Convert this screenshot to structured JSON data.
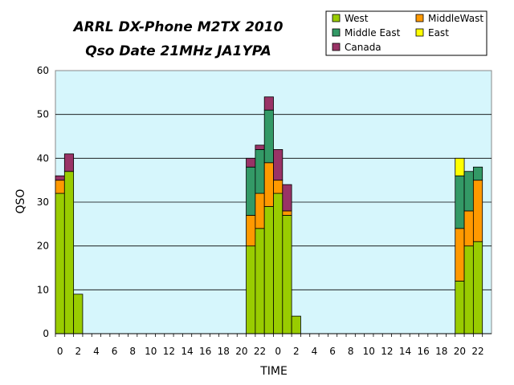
{
  "chart_data": {
    "type": "bar",
    "stacked": true,
    "title": "ARRL DX-Phone M2TX 2010",
    "subtitle": "Qso Date 21MHz JA1YPA",
    "xlabel": "TIME",
    "ylabel": "QSO",
    "ylim": [
      0,
      60
    ],
    "yticks": [
      0,
      10,
      20,
      30,
      40,
      50,
      60
    ],
    "grid": true,
    "legend_position": "top-right",
    "plot_background": "#d6f6fc",
    "categories": [
      "0",
      "1",
      "2",
      "3",
      "4",
      "5",
      "6",
      "7",
      "8",
      "9",
      "10",
      "11",
      "12",
      "13",
      "14",
      "15",
      "16",
      "17",
      "18",
      "19",
      "20",
      "21",
      "22",
      "23",
      "0",
      "1",
      "2",
      "3",
      "4",
      "5",
      "6",
      "7",
      "8",
      "9",
      "10",
      "11",
      "12",
      "13",
      "14",
      "15",
      "16",
      "17",
      "18",
      "19",
      "20",
      "21",
      "22",
      "23"
    ],
    "tick_labels": [
      "0",
      "2",
      "4",
      "6",
      "8",
      "10",
      "12",
      "14",
      "16",
      "18",
      "20",
      "22",
      "0",
      "2",
      "4",
      "6",
      "8",
      "10",
      "12",
      "14",
      "16",
      "18",
      "20",
      "22"
    ],
    "series": [
      {
        "name": "West",
        "color": "#99cc00",
        "values": [
          32,
          37,
          9,
          0,
          0,
          0,
          0,
          0,
          0,
          0,
          0,
          0,
          0,
          0,
          0,
          0,
          0,
          0,
          0,
          0,
          0,
          20,
          24,
          29,
          32,
          27,
          4,
          0,
          0,
          0,
          0,
          0,
          0,
          0,
          0,
          0,
          0,
          0,
          0,
          0,
          0,
          0,
          0,
          0,
          12,
          20,
          21,
          0
        ]
      },
      {
        "name": "MiddleWast",
        "color": "#ff9900",
        "values": [
          3,
          0,
          0,
          0,
          0,
          0,
          0,
          0,
          0,
          0,
          0,
          0,
          0,
          0,
          0,
          0,
          0,
          0,
          0,
          0,
          0,
          7,
          8,
          10,
          3,
          1,
          0,
          0,
          0,
          0,
          0,
          0,
          0,
          0,
          0,
          0,
          0,
          0,
          0,
          0,
          0,
          0,
          0,
          0,
          12,
          8,
          14,
          0
        ]
      },
      {
        "name": "Middle East",
        "color": "#339966",
        "values": [
          0,
          0,
          0,
          0,
          0,
          0,
          0,
          0,
          0,
          0,
          0,
          0,
          0,
          0,
          0,
          0,
          0,
          0,
          0,
          0,
          0,
          11,
          10,
          12,
          0,
          0,
          0,
          0,
          0,
          0,
          0,
          0,
          0,
          0,
          0,
          0,
          0,
          0,
          0,
          0,
          0,
          0,
          0,
          0,
          12,
          9,
          3,
          0
        ]
      },
      {
        "name": "East",
        "color": "#ffff00",
        "values": [
          0,
          0,
          0,
          0,
          0,
          0,
          0,
          0,
          0,
          0,
          0,
          0,
          0,
          0,
          0,
          0,
          0,
          0,
          0,
          0,
          0,
          0,
          0,
          0,
          0,
          0,
          0,
          0,
          0,
          0,
          0,
          0,
          0,
          0,
          0,
          0,
          0,
          0,
          0,
          0,
          0,
          0,
          0,
          0,
          4,
          0,
          0,
          0
        ]
      },
      {
        "name": "Canada",
        "color": "#993366",
        "values": [
          1,
          4,
          0,
          0,
          0,
          0,
          0,
          0,
          0,
          0,
          0,
          0,
          0,
          0,
          0,
          0,
          0,
          0,
          0,
          0,
          0,
          2,
          1,
          3,
          7,
          6,
          0,
          0,
          0,
          0,
          0,
          0,
          0,
          0,
          0,
          0,
          0,
          0,
          0,
          0,
          0,
          0,
          0,
          0,
          0,
          0,
          0,
          0
        ]
      }
    ],
    "legend_order": [
      "West",
      "MiddleWast",
      "Middle East",
      "East",
      "Canada"
    ]
  }
}
